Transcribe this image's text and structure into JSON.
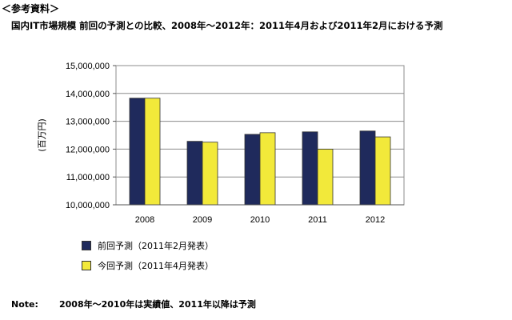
{
  "header": {
    "ref_label": "＜参考資料＞",
    "title": "国内IT市場規模 前回の予測との比較、2008年～2012年：2011年4月および2011年2月における予測"
  },
  "chart_data": {
    "type": "bar",
    "title": "",
    "ylabel": "(百万円)",
    "xlabel": "",
    "categories": [
      "2008",
      "2009",
      "2010",
      "2011",
      "2012"
    ],
    "ylim": [
      10000000,
      15000000
    ],
    "yticks": [
      "10,000,000",
      "11,000,000",
      "12,000,000",
      "13,000,000",
      "14,000,000",
      "15,000,000"
    ],
    "grid": true,
    "legend_position": "bottom-left",
    "series": [
      {
        "name": "前回予測（2011年2月発表）",
        "color": "#1f2a5c",
        "values": [
          13830000,
          12280000,
          12530000,
          12620000,
          12650000
        ]
      },
      {
        "name": "今回予測（2011年4月発表）",
        "color": "#f2e93a",
        "values": [
          13830000,
          12250000,
          12590000,
          12000000,
          12440000
        ]
      }
    ]
  },
  "note": {
    "key": "Note:",
    "text": "2008年～2010年は実績値、2011年以降は予測"
  }
}
